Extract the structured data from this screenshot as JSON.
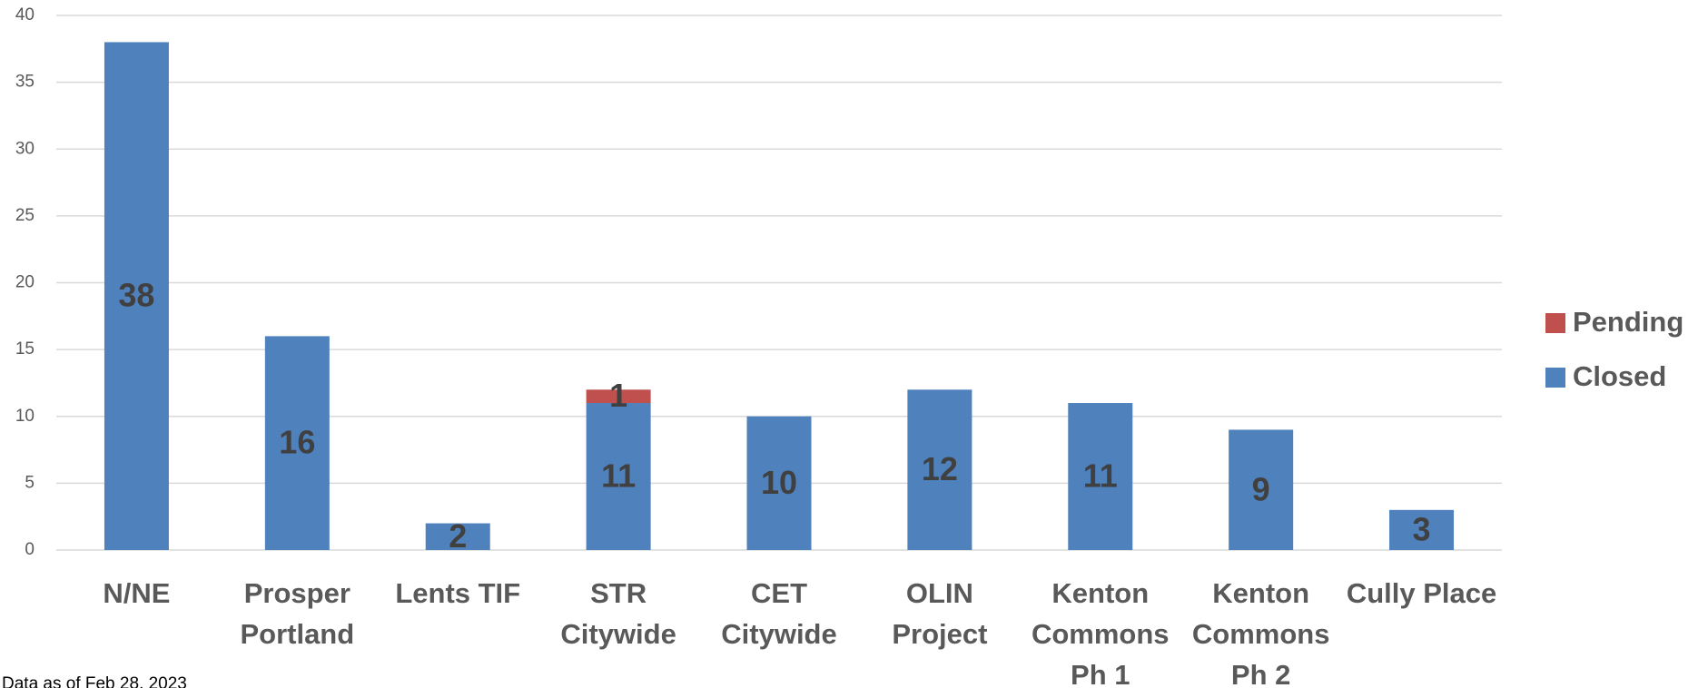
{
  "chart_data": {
    "type": "stacked_bar",
    "categories": [
      [
        "N/NE"
      ],
      [
        "Prosper",
        "Portland"
      ],
      [
        "Lents TIF"
      ],
      [
        "STR",
        "Citywide"
      ],
      [
        "CET",
        "Citywide"
      ],
      [
        "OLIN",
        "Project"
      ],
      [
        "Kenton",
        "Commons",
        "Ph 1"
      ],
      [
        "Kenton",
        "Commons",
        "Ph 2"
      ],
      [
        "Cully Place"
      ]
    ],
    "series": [
      {
        "name": "Closed",
        "color": "#4f81bd",
        "values": [
          38,
          16,
          2,
          11,
          10,
          12,
          11,
          9,
          3
        ]
      },
      {
        "name": "Pending",
        "color": "#c0504d",
        "values": [
          null,
          null,
          null,
          1,
          null,
          null,
          null,
          null,
          null
        ]
      }
    ],
    "ylim": [
      0,
      40
    ],
    "yticks": [
      0,
      5,
      10,
      15,
      20,
      25,
      30,
      35,
      40
    ],
    "grid": true,
    "legend": "right",
    "footnote": "Data as of Feb 28, 2023"
  }
}
